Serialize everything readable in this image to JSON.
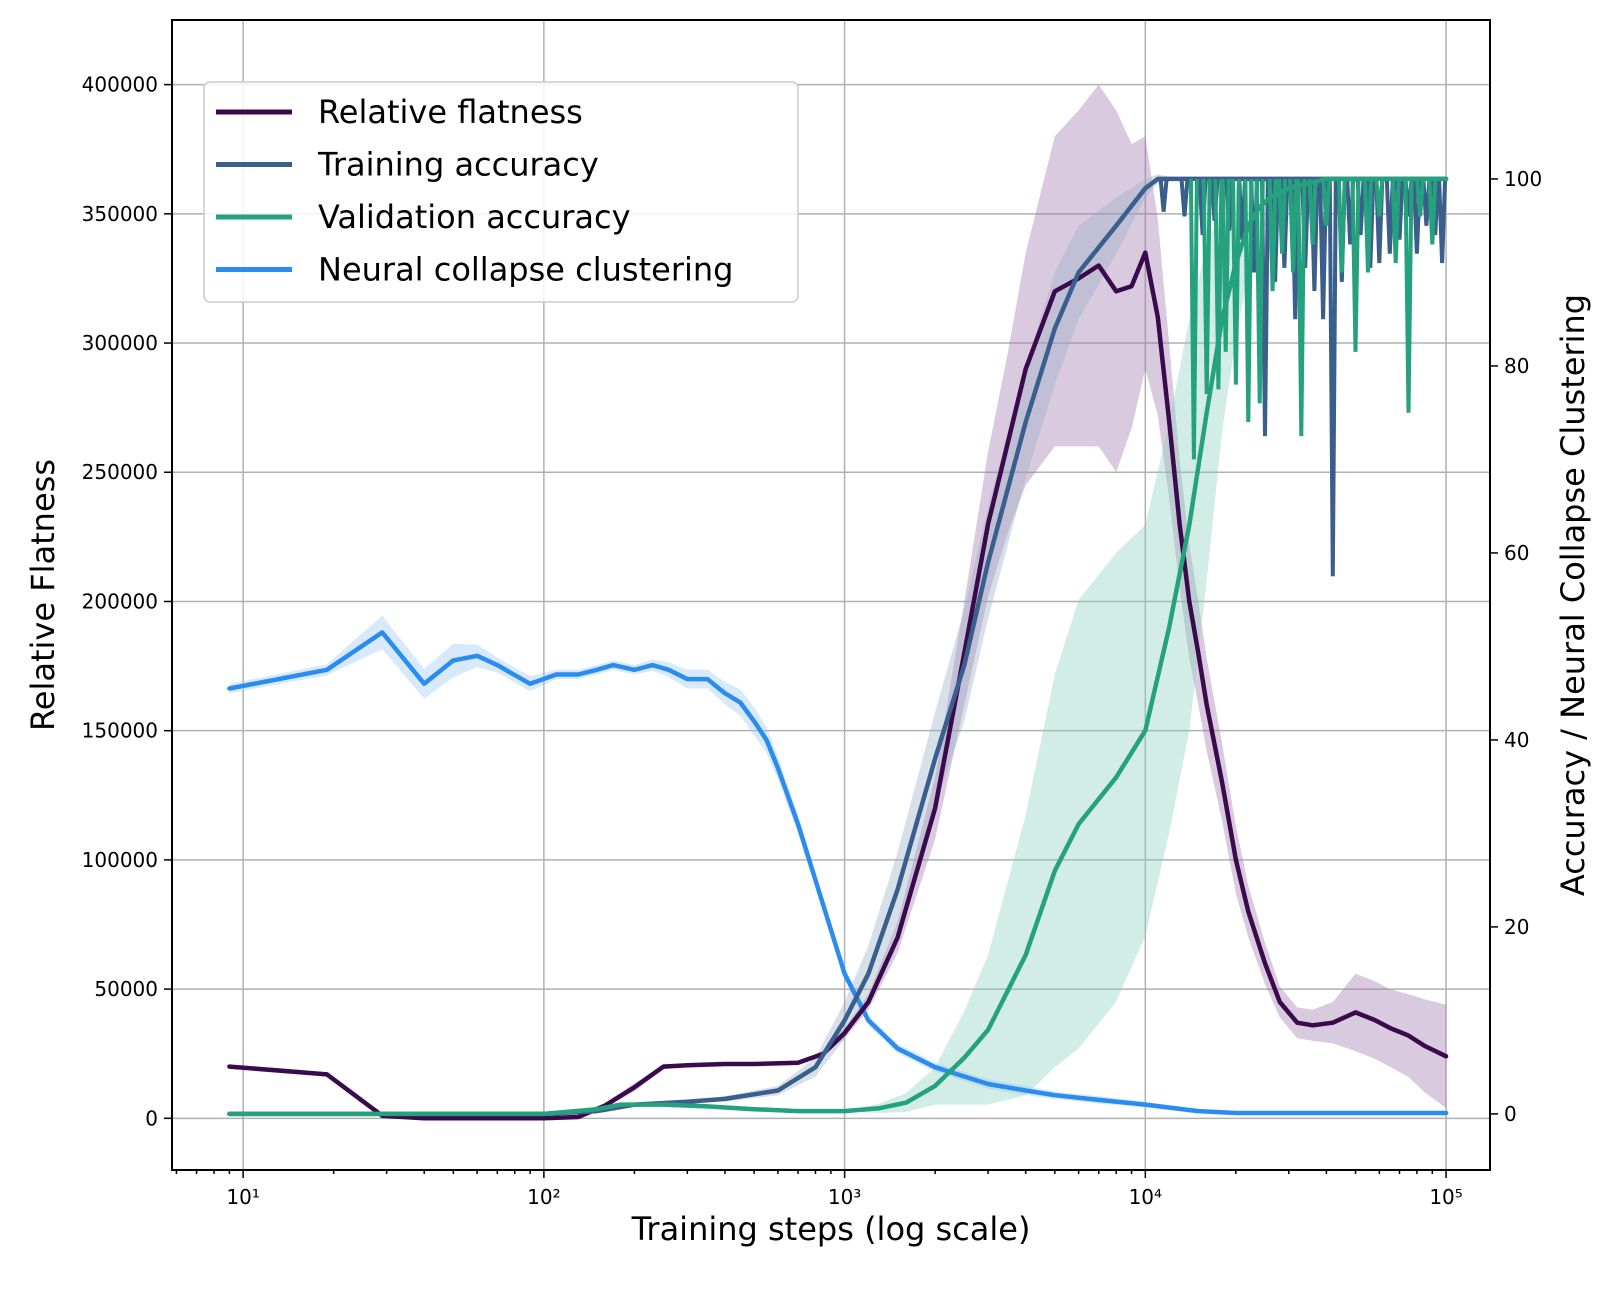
{
  "chart_data": {
    "type": "line",
    "xlabel": "Training steps (log scale)",
    "ylabel": "Relative Flatness",
    "y2label": "Accuracy / Neural Collapse Clustering",
    "x_scale": "log",
    "xlim": [
      5.8,
      140000
    ],
    "ylim": [
      -20000,
      425000
    ],
    "y2lim": [
      -6,
      117
    ],
    "x_ticks": [
      10,
      100,
      1000,
      10000,
      100000
    ],
    "x_tick_labels": [
      "10¹",
      "10²",
      "10³",
      "10⁴",
      "10⁵"
    ],
    "y_ticks": [
      0,
      50000,
      100000,
      150000,
      200000,
      250000,
      300000,
      350000,
      400000
    ],
    "y_tick_labels": [
      "0",
      "50000",
      "100000",
      "150000",
      "200000",
      "250000",
      "300000",
      "350000",
      "400000"
    ],
    "y2_ticks": [
      0,
      20,
      40,
      60,
      80,
      100
    ],
    "y2_tick_labels": [
      "0",
      "20",
      "40",
      "60",
      "80",
      "100"
    ],
    "grid": true,
    "legend_position": "top-left",
    "series": [
      {
        "name": "Relative flatness",
        "axis": "left",
        "color": "#3b0a4d",
        "band_color": "#a07ab0",
        "x": [
          9,
          19,
          29,
          40,
          60,
          100,
          130,
          160,
          200,
          250,
          300,
          400,
          500,
          700,
          850,
          1000,
          1200,
          1500,
          2000,
          2500,
          3000,
          3500,
          4000,
          5000,
          6000,
          7000,
          8000,
          9000,
          10000,
          11000,
          12000,
          13000,
          14000,
          15000,
          16000,
          18000,
          20000,
          22000,
          25000,
          28000,
          32000,
          36000,
          42000,
          50000,
          58000,
          65000,
          75000,
          85000,
          100000
        ],
        "y": [
          20000,
          17000,
          1000,
          0,
          0,
          0,
          500,
          5000,
          12000,
          20000,
          20500,
          21000,
          21000,
          21500,
          25000,
          33000,
          45000,
          70000,
          120000,
          180000,
          230000,
          262000,
          290000,
          320000,
          325000,
          330000,
          320000,
          322000,
          335000,
          310000,
          270000,
          230000,
          200000,
          180000,
          160000,
          130000,
          100000,
          80000,
          60000,
          45000,
          37000,
          36000,
          37000,
          41000,
          38000,
          35000,
          32000,
          28000,
          24000
        ],
        "band": [
          0,
          0,
          0,
          0,
          0,
          0,
          0,
          1000,
          1500,
          1000,
          500,
          500,
          500,
          500,
          1000,
          2000,
          3000,
          6000,
          12000,
          20000,
          28000,
          35000,
          45000,
          60000,
          65000,
          70000,
          70000,
          55000,
          45000,
          38000,
          30000,
          25000,
          22000,
          20000,
          18000,
          15000,
          13000,
          10000,
          8000,
          6000,
          6000,
          6000,
          8000,
          15000,
          15000,
          15000,
          16000,
          18000,
          20000
        ]
      },
      {
        "name": "Training accuracy",
        "axis": "right",
        "color": "#3a5f8c",
        "band_color": "#9aaec8",
        "x": [
          9,
          20,
          40,
          100,
          150,
          200,
          300,
          400,
          600,
          800,
          1000,
          1200,
          1500,
          2000,
          2500,
          3000,
          4000,
          5000,
          6000,
          8000,
          10000,
          11000,
          13000,
          16000,
          20000,
          30000,
          50000,
          80000,
          100000
        ],
        "y": [
          0,
          0,
          0,
          0,
          0.3,
          1,
          1.3,
          1.6,
          2.5,
          5,
          10,
          15,
          24,
          38,
          48,
          59,
          74,
          84,
          90,
          95,
          99,
          100,
          100,
          100,
          100,
          100,
          100,
          100,
          100
        ],
        "band": [
          0,
          0,
          0,
          0,
          0,
          0,
          0,
          0.3,
          0.5,
          1,
          2,
          3,
          4,
          5,
          6,
          6,
          6,
          6,
          5,
          3,
          1,
          0.5,
          0,
          0,
          0,
          0,
          0,
          0,
          0
        ],
        "dips": [
          [
            11500,
            96.5
          ],
          [
            13500,
            96
          ],
          [
            15500,
            94
          ],
          [
            17000,
            95.5
          ],
          [
            19000,
            94.5
          ],
          [
            21000,
            93.5
          ],
          [
            23000,
            90
          ],
          [
            25000,
            72.5
          ],
          [
            27000,
            89
          ],
          [
            29000,
            90.5
          ],
          [
            31500,
            85
          ],
          [
            34000,
            90.5
          ],
          [
            36500,
            88
          ],
          [
            39000,
            85
          ],
          [
            42000,
            57.5
          ],
          [
            45000,
            89
          ],
          [
            48000,
            93
          ],
          [
            52000,
            94
          ],
          [
            56000,
            90.5
          ],
          [
            60000,
            91
          ],
          [
            65000,
            92
          ],
          [
            70000,
            93.5
          ],
          [
            75000,
            96
          ],
          [
            80000,
            92
          ],
          [
            86000,
            95
          ],
          [
            92000,
            94
          ],
          [
            97000,
            91
          ]
        ]
      },
      {
        "name": "Validation accuracy",
        "axis": "right",
        "color": "#26a17e",
        "band_color": "#8fd3bd",
        "x": [
          9,
          20,
          40,
          100,
          150,
          180,
          250,
          350,
          500,
          700,
          1000,
          1300,
          1600,
          2000,
          2500,
          3000,
          4000,
          5000,
          6000,
          8000,
          10000,
          12000,
          14000,
          16000,
          18000,
          20000,
          22000,
          24000,
          26000,
          30000,
          40000,
          60000,
          80000,
          100000
        ],
        "y": [
          0,
          0,
          0,
          0,
          0.5,
          1,
          1,
          0.8,
          0.5,
          0.3,
          0.3,
          0.6,
          1.2,
          3,
          6,
          9,
          17,
          26,
          31,
          36,
          41,
          52,
          63,
          75,
          85,
          91,
          95,
          97,
          98,
          99,
          100,
          100,
          100,
          100
        ],
        "band": [
          0,
          0,
          0,
          0,
          0,
          0,
          0,
          0,
          0,
          0,
          0,
          0.5,
          1,
          2,
          5,
          8,
          15,
          21,
          24,
          24,
          22,
          22,
          22,
          18,
          12,
          8,
          5,
          3,
          2,
          1,
          0,
          0,
          0,
          0
        ],
        "dips": [
          [
            14500,
            70
          ],
          [
            16000,
            77
          ],
          [
            17500,
            77.5
          ],
          [
            18500,
            81.5
          ],
          [
            20000,
            78
          ],
          [
            22000,
            74
          ],
          [
            24000,
            76
          ],
          [
            26500,
            88
          ],
          [
            28500,
            92
          ],
          [
            31000,
            90
          ],
          [
            33000,
            72.5
          ],
          [
            36000,
            93
          ],
          [
            40000,
            95
          ],
          [
            45000,
            90
          ],
          [
            50000,
            81.5
          ],
          [
            55000,
            90
          ],
          [
            60000,
            96
          ],
          [
            68000,
            91
          ],
          [
            75000,
            75
          ],
          [
            82000,
            96
          ],
          [
            90000,
            93
          ]
        ]
      },
      {
        "name": "Neural collapse clustering",
        "axis": "right",
        "color": "#2b8cf0",
        "band_color": "#9ec9f5",
        "x": [
          9,
          19,
          29,
          40,
          50,
          60,
          70,
          90,
          110,
          130,
          150,
          170,
          200,
          230,
          260,
          300,
          350,
          400,
          450,
          500,
          550,
          600,
          700,
          800,
          1000,
          1200,
          1500,
          2000,
          2500,
          3000,
          4000,
          5000,
          7000,
          10000,
          15000,
          20000,
          50000,
          100000
        ],
        "y": [
          45.5,
          47.5,
          51.5,
          46,
          48.5,
          49,
          48,
          46,
          47,
          47,
          47.5,
          48,
          47.5,
          48,
          47.5,
          46.5,
          46.5,
          45,
          44,
          42,
          40,
          37,
          31,
          25,
          15,
          10,
          7,
          5,
          4,
          3.2,
          2.5,
          2,
          1.5,
          1,
          0.3,
          0.1,
          0.1,
          0.1
        ],
        "band": [
          0.5,
          0.6,
          1.8,
          1.6,
          1.8,
          1.2,
          0.8,
          0.8,
          0.5,
          0.5,
          0.5,
          0.5,
          0.5,
          0.6,
          0.8,
          1.0,
          1.0,
          1.2,
          1.4,
          1.5,
          1.4,
          1.2,
          1.0,
          0.8,
          0.6,
          0.5,
          0.5,
          0.5,
          0.5,
          0.5,
          0.5,
          0.4,
          0.4,
          0.3,
          0.2,
          0.2,
          0.2,
          0.2
        ]
      }
    ]
  }
}
